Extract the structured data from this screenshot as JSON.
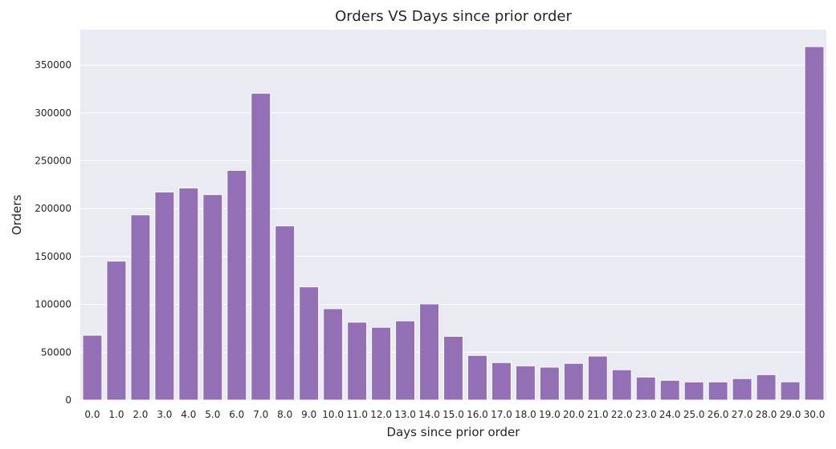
{
  "chart_data": {
    "type": "bar",
    "title": "Orders VS Days since prior order",
    "xlabel": "Days since prior order",
    "ylabel": "Orders",
    "categories": [
      "0.0",
      "1.0",
      "2.0",
      "3.0",
      "4.0",
      "5.0",
      "6.0",
      "7.0",
      "8.0",
      "9.0",
      "10.0",
      "11.0",
      "12.0",
      "13.0",
      "14.0",
      "15.0",
      "16.0",
      "17.0",
      "18.0",
      "19.0",
      "20.0",
      "21.0",
      "22.0",
      "23.0",
      "24.0",
      "25.0",
      "26.0",
      "27.0",
      "28.0",
      "29.0",
      "30.0"
    ],
    "values": [
      67800,
      145200,
      193600,
      217400,
      221600,
      214700,
      240000,
      320600,
      182000,
      118300,
      95500,
      81400,
      76100,
      82800,
      100500,
      66600,
      46700,
      39200,
      35800,
      34400,
      38400,
      46000,
      31700,
      24100,
      20700,
      19000,
      19000,
      22500,
      26600,
      19100,
      369300
    ],
    "ylim": [
      0,
      387000
    ],
    "yticks": [
      0,
      50000,
      100000,
      150000,
      200000,
      250000,
      300000,
      350000
    ],
    "bar_color": "#9370b6",
    "background_color": "#eaeaf2",
    "gridline_color": "#ffffff",
    "grid": true
  }
}
